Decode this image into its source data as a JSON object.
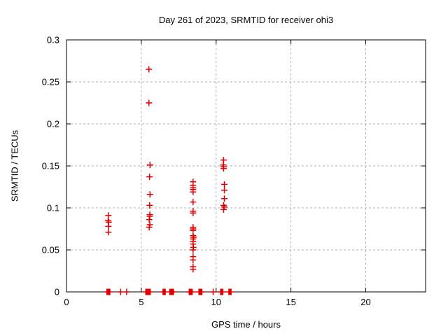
{
  "chart_data": {
    "type": "scatter",
    "title": "Day 261 of 2023, SRMTID for receiver ohi3",
    "xlabel": "GPS time / hours",
    "ylabel": "SRMTID / TECUs",
    "xlim": [
      0,
      24
    ],
    "ylim": [
      0,
      0.3
    ],
    "xticks": [
      0,
      5,
      10,
      15,
      20
    ],
    "xtick_labels": [
      "0",
      "5",
      "10",
      "15",
      "20"
    ],
    "yticks": [
      0,
      0.05,
      0.1,
      0.15,
      0.2,
      0.25,
      0.3
    ],
    "ytick_labels": [
      "0",
      "0.05",
      "0.1",
      "0.15",
      "0.2",
      "0.25",
      "0.3"
    ],
    "grid": true,
    "legend_position": "none",
    "marker": "plus",
    "marker_color": "#e00000",
    "grid_color": "#b0b0b0",
    "frame_color": "#000000",
    "background_color": "#ffffff",
    "series": [
      {
        "name": "SRMTID",
        "points": [
          [
            2.7,
            0
          ],
          [
            2.75,
            0
          ],
          [
            2.8,
            0
          ],
          [
            2.85,
            0
          ],
          [
            2.9,
            0
          ],
          [
            2.8,
            0.091
          ],
          [
            2.78,
            0.085
          ],
          [
            2.82,
            0.083
          ],
          [
            2.8,
            0.078
          ],
          [
            2.8,
            0.071
          ],
          [
            3.62,
            0
          ],
          [
            4.02,
            0
          ],
          [
            5.3,
            0
          ],
          [
            5.35,
            0
          ],
          [
            5.4,
            0
          ],
          [
            5.45,
            0
          ],
          [
            5.5,
            0
          ],
          [
            5.55,
            0
          ],
          [
            5.6,
            0
          ],
          [
            5.51,
            0.265
          ],
          [
            5.51,
            0.225
          ],
          [
            5.58,
            0.151
          ],
          [
            5.55,
            0.137
          ],
          [
            5.58,
            0.116
          ],
          [
            5.56,
            0.103
          ],
          [
            5.57,
            0.092
          ],
          [
            5.57,
            0.09
          ],
          [
            5.53,
            0.086
          ],
          [
            5.57,
            0.08
          ],
          [
            5.53,
            0.077
          ],
          [
            6.45,
            0
          ],
          [
            6.5,
            0
          ],
          [
            6.55,
            0
          ],
          [
            6.6,
            0
          ],
          [
            6.9,
            0
          ],
          [
            6.95,
            0
          ],
          [
            7.0,
            0
          ],
          [
            7.05,
            0
          ],
          [
            7.1,
            0
          ],
          [
            7.15,
            0
          ],
          [
            8.2,
            0
          ],
          [
            8.25,
            0
          ],
          [
            8.3,
            0
          ],
          [
            8.35,
            0
          ],
          [
            8.4,
            0
          ],
          [
            8.46,
            0.131
          ],
          [
            8.46,
            0.127
          ],
          [
            8.46,
            0.124
          ],
          [
            8.46,
            0.122
          ],
          [
            8.46,
            0.119
          ],
          [
            8.46,
            0.107
          ],
          [
            8.46,
            0.096
          ],
          [
            8.46,
            0.094
          ],
          [
            8.46,
            0.077
          ],
          [
            8.46,
            0.075
          ],
          [
            8.46,
            0.073
          ],
          [
            8.46,
            0.067
          ],
          [
            8.5,
            0.065
          ],
          [
            8.46,
            0.063
          ],
          [
            8.46,
            0.06
          ],
          [
            8.46,
            0.057
          ],
          [
            8.48,
            0.053
          ],
          [
            8.46,
            0.05
          ],
          [
            8.46,
            0.042
          ],
          [
            8.46,
            0.038
          ],
          [
            8.46,
            0.03
          ],
          [
            8.46,
            0.027
          ],
          [
            8.85,
            0
          ],
          [
            8.9,
            0
          ],
          [
            8.95,
            0
          ],
          [
            9.0,
            0
          ],
          [
            9.05,
            0
          ],
          [
            9.8,
            0
          ],
          [
            10.3,
            0
          ],
          [
            10.35,
            0
          ],
          [
            10.4,
            0
          ],
          [
            10.45,
            0
          ],
          [
            10.5,
            0.157
          ],
          [
            10.48,
            0.151
          ],
          [
            10.5,
            0.149
          ],
          [
            10.5,
            0.147
          ],
          [
            10.55,
            0.128
          ],
          [
            10.55,
            0.121
          ],
          [
            10.55,
            0.111
          ],
          [
            10.5,
            0.103
          ],
          [
            10.55,
            0.101
          ],
          [
            10.5,
            0.098
          ],
          [
            10.85,
            0
          ],
          [
            10.9,
            0
          ],
          [
            10.95,
            0
          ],
          [
            11.0,
            0
          ]
        ]
      }
    ]
  }
}
